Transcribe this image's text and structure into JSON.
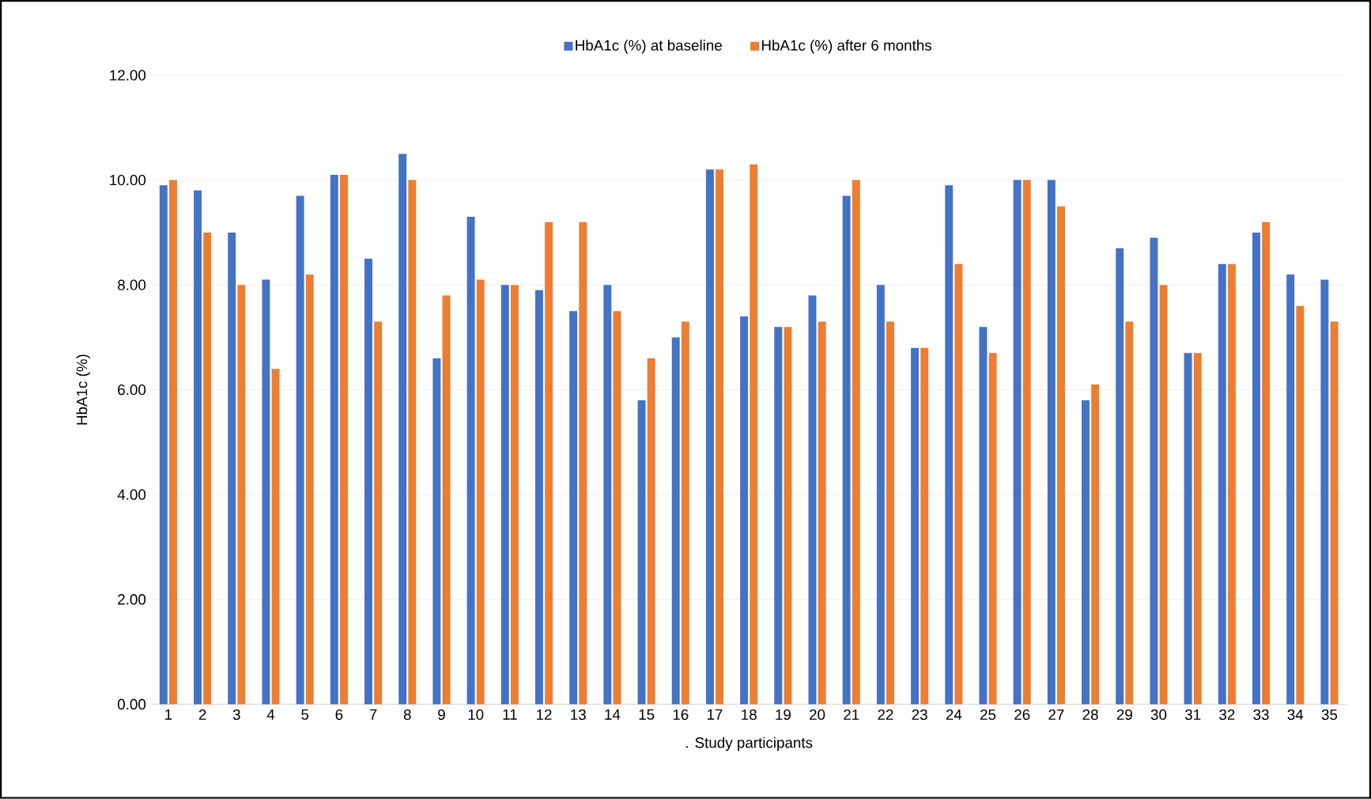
{
  "chart_data": {
    "type": "bar",
    "xlabel": ". Study participants",
    "ylabel": "HbA1c (%)",
    "categories": [
      "1",
      "2",
      "3",
      "4",
      "5",
      "6",
      "7",
      "8",
      "9",
      "10",
      "11",
      "12",
      "13",
      "14",
      "15",
      "16",
      "17",
      "18",
      "19",
      "20",
      "21",
      "22",
      "23",
      "24",
      "25",
      "26",
      "27",
      "28",
      "29",
      "30",
      "31",
      "32",
      "33",
      "34",
      "35"
    ],
    "series": [
      {
        "name": "HbA1c (%) at baseline",
        "color": "#4472c4",
        "values": [
          9.9,
          9.8,
          9.0,
          8.1,
          9.7,
          10.1,
          8.5,
          10.5,
          6.6,
          9.3,
          8.0,
          7.9,
          7.5,
          8.0,
          5.8,
          7.0,
          10.2,
          7.4,
          7.2,
          7.8,
          9.7,
          8.0,
          6.8,
          9.9,
          7.2,
          10.0,
          10.0,
          5.8,
          8.7,
          8.9,
          6.7,
          8.4,
          9.0,
          8.2,
          8.1
        ]
      },
      {
        "name": "HbA1c (%) after 6 months",
        "color": "#ed7d31",
        "values": [
          10.0,
          9.0,
          8.0,
          6.4,
          8.2,
          10.1,
          7.3,
          10.0,
          7.8,
          8.1,
          8.0,
          9.2,
          9.2,
          7.5,
          6.6,
          7.3,
          10.2,
          10.3,
          7.2,
          7.3,
          10.0,
          7.3,
          6.8,
          8.4,
          6.7,
          10.0,
          9.5,
          6.1,
          7.3,
          8.0,
          6.7,
          8.4,
          9.2,
          7.6,
          7.3
        ]
      }
    ],
    "ylim": [
      0,
      12
    ],
    "yticks": [
      {
        "value": 0,
        "label": "0.00"
      },
      {
        "value": 2,
        "label": "2.00"
      },
      {
        "value": 4,
        "label": "4.00"
      },
      {
        "value": 6,
        "label": "6.00"
      },
      {
        "value": 8,
        "label": "8.00"
      },
      {
        "value": 10,
        "label": "10.00"
      },
      {
        "value": 12,
        "label": "12.00"
      }
    ],
    "grid": "y",
    "legend": "top"
  }
}
